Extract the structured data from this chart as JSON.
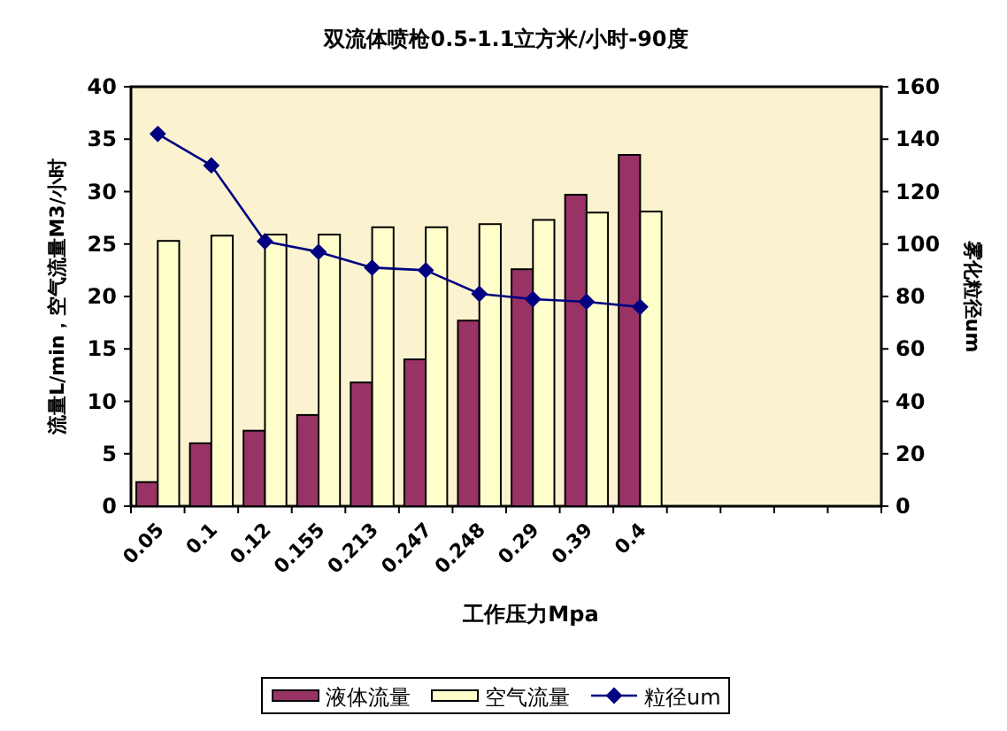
{
  "chart_data": {
    "type": "bar",
    "title": "双流体喷枪0.5-1.1立方米/小时-90度",
    "xlabel": "工作压力Mpa",
    "ylabel": "流量L/min，空气流量M3/小时",
    "y2label": "雾化粒径um",
    "categories": [
      "0.05",
      "0.1",
      "0.12",
      "0.155",
      "0.213",
      "0.247",
      "0.248",
      "0.29",
      "0.39",
      "0.4",
      null,
      null,
      null,
      null
    ],
    "series": [
      {
        "name": "液体流量",
        "color": "#993366",
        "values": [
          2.3,
          6.0,
          7.2,
          8.7,
          11.8,
          14.0,
          17.7,
          22.6,
          29.7,
          33.5,
          null,
          null,
          null,
          null
        ]
      },
      {
        "name": "空气流量",
        "color": "#ffffcc",
        "values": [
          25.3,
          25.8,
          25.9,
          25.9,
          26.6,
          26.6,
          26.9,
          27.3,
          28.0,
          28.1,
          null,
          null,
          null,
          null
        ]
      },
      {
        "name": "粒径um",
        "type": "line",
        "axis": "y2",
        "color": "#000080",
        "marker": "diamond",
        "values": [
          142,
          130,
          101,
          97,
          91,
          90,
          81,
          79,
          78,
          76,
          null,
          null,
          null,
          null
        ]
      }
    ],
    "ylim": [
      0,
      40
    ],
    "yticks": [
      0,
      5,
      10,
      15,
      20,
      25,
      30,
      35,
      40
    ],
    "y2lim": [
      0,
      160
    ],
    "y2ticks": [
      0,
      20,
      40,
      60,
      80,
      100,
      120,
      140,
      160
    ],
    "grid": false,
    "legend": "bottom"
  }
}
